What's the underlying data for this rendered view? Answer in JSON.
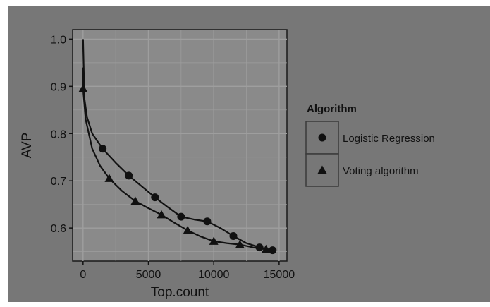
{
  "chart_data": {
    "type": "line",
    "xlabel": "Top.count",
    "ylabel": "AVP",
    "xlim": [
      -800,
      15600
    ],
    "ylim": [
      0.53,
      1.02
    ],
    "x_ticks": [
      0,
      5000,
      10000,
      15000
    ],
    "y_ticks": [
      0.6,
      0.7,
      0.8,
      0.9,
      1.0
    ],
    "y_tick_labels": [
      "0.6",
      "0.7",
      "0.8",
      "0.9",
      "1.0"
    ],
    "grid": true,
    "legend": {
      "title": "Algorithm",
      "placement": "right"
    },
    "series": [
      {
        "name": "Logistic Regression",
        "marker": "circle",
        "points": [
          [
            1500,
            0.768
          ],
          [
            3500,
            0.711
          ],
          [
            5500,
            0.665
          ],
          [
            7500,
            0.624
          ],
          [
            9500,
            0.614
          ],
          [
            11500,
            0.583
          ],
          [
            13500,
            0.559
          ],
          [
            14500,
            0.553
          ]
        ],
        "curve": [
          [
            0,
            1.0
          ],
          [
            100,
            0.875
          ],
          [
            300,
            0.835
          ],
          [
            700,
            0.8
          ],
          [
            1500,
            0.768
          ],
          [
            2500,
            0.738
          ],
          [
            3500,
            0.711
          ],
          [
            4500,
            0.688
          ],
          [
            5500,
            0.665
          ],
          [
            6500,
            0.644
          ],
          [
            7500,
            0.624
          ],
          [
            8500,
            0.618
          ],
          [
            9500,
            0.614
          ],
          [
            10500,
            0.6
          ],
          [
            11500,
            0.583
          ],
          [
            12500,
            0.568
          ],
          [
            13500,
            0.559
          ],
          [
            14500,
            0.553
          ]
        ]
      },
      {
        "name": "Voting algorithm",
        "marker": "triangle",
        "points": [
          [
            0,
            0.895
          ],
          [
            2000,
            0.705
          ],
          [
            4000,
            0.657
          ],
          [
            6000,
            0.628
          ],
          [
            8000,
            0.595
          ],
          [
            10000,
            0.572
          ],
          [
            12000,
            0.565
          ],
          [
            14000,
            0.555
          ]
        ],
        "curve": [
          [
            0,
            0.94
          ],
          [
            0,
            0.895
          ],
          [
            200,
            0.83
          ],
          [
            700,
            0.768
          ],
          [
            1300,
            0.732
          ],
          [
            2000,
            0.705
          ],
          [
            3000,
            0.678
          ],
          [
            4000,
            0.657
          ],
          [
            5000,
            0.642
          ],
          [
            6000,
            0.628
          ],
          [
            7000,
            0.611
          ],
          [
            8000,
            0.595
          ],
          [
            9000,
            0.582
          ],
          [
            10000,
            0.572
          ],
          [
            11000,
            0.568
          ],
          [
            12000,
            0.565
          ],
          [
            13000,
            0.559
          ],
          [
            14000,
            0.555
          ],
          [
            14800,
            0.554
          ]
        ]
      }
    ]
  }
}
